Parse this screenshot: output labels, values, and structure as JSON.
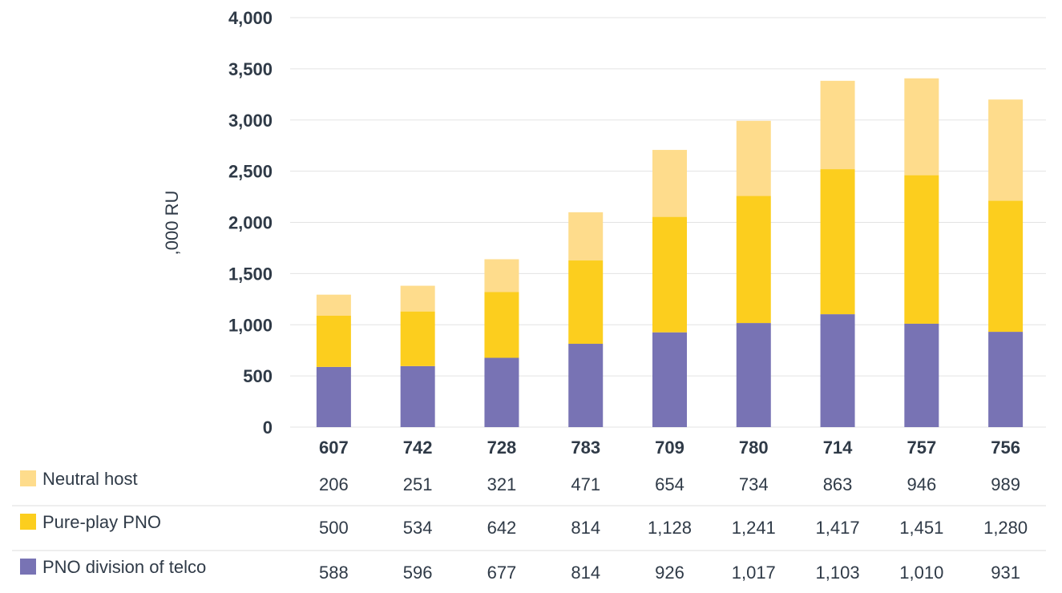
{
  "chart_data": {
    "type": "bar",
    "stacked": true,
    "ylabel": ",000 RU",
    "ylim": [
      0,
      4000
    ],
    "yticks": [
      0,
      500,
      1000,
      1500,
      2000,
      2500,
      3000,
      3500,
      4000
    ],
    "ytick_labels": [
      "0",
      "500",
      "1,000",
      "1,500",
      "2,000",
      "2,500",
      "3,000",
      "3,500",
      "4,000"
    ],
    "categories": [
      "607",
      "742",
      "728",
      "783",
      "709",
      "780",
      "714",
      "757",
      "756"
    ],
    "grid": true,
    "legend_position": "data-table-below",
    "series": [
      {
        "name": "PNO division of telco",
        "color": "#7873b4",
        "values": [
          588,
          596,
          677,
          814,
          926,
          1017,
          1103,
          1010,
          931
        ],
        "labels": [
          "588",
          "596",
          "677",
          "814",
          "926",
          "1,017",
          "1,103",
          "1,010",
          "931"
        ]
      },
      {
        "name": "Pure-play PNO",
        "color": "#fcce1e",
        "values": [
          500,
          534,
          642,
          814,
          1128,
          1241,
          1417,
          1451,
          1280
        ],
        "labels": [
          "500",
          "534",
          "642",
          "814",
          "1,128",
          "1,241",
          "1,417",
          "1,451",
          "1,280"
        ]
      },
      {
        "name": "Neutral host",
        "color": "#fedc8c",
        "values": [
          206,
          251,
          321,
          471,
          654,
          734,
          863,
          946,
          989
        ],
        "labels": [
          "206",
          "251",
          "321",
          "471",
          "654",
          "734",
          "863",
          "946",
          "989"
        ]
      }
    ],
    "table_row_order": [
      "Neutral host",
      "Pure-play PNO",
      "PNO division of telco"
    ]
  }
}
